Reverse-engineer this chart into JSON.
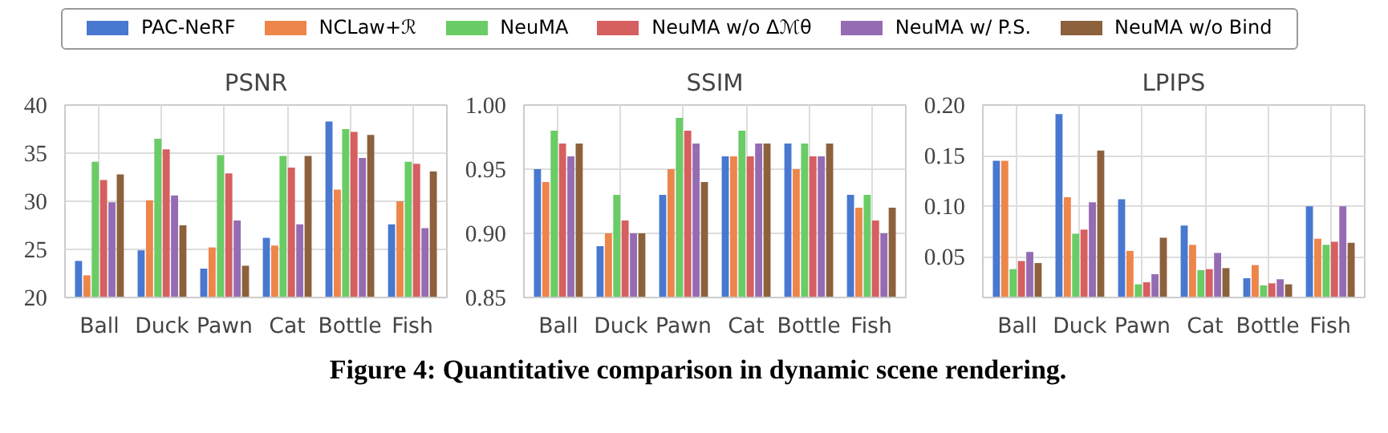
{
  "chart_data": [
    {
      "type": "bar",
      "title": "PSNR",
      "categories": [
        "Ball",
        "Duck",
        "Pawn",
        "Cat",
        "Bottle",
        "Fish"
      ],
      "ylim": [
        20,
        40
      ],
      "yticks": [
        20,
        25,
        30,
        35,
        40
      ],
      "grid": true,
      "legend": "top",
      "annotations": [
        "Figure 4: Quantitative comparison in dynamic scene rendering."
      ],
      "series": [
        {
          "name": "PAC-NeRF",
          "color": "#4878d0",
          "values": [
            23.8,
            24.9,
            23.0,
            26.2,
            38.3,
            27.6
          ]
        },
        {
          "name": "NCLaw+ℛ",
          "color": "#ee854a",
          "values": [
            22.3,
            30.1,
            25.2,
            25.4,
            31.2,
            30.0
          ]
        },
        {
          "name": "NeuMA",
          "color": "#6acc64",
          "values": [
            34.1,
            36.5,
            34.8,
            34.7,
            37.5,
            34.1
          ]
        },
        {
          "name": "NeuMA w/o Δℳθ",
          "color": "#d65f5f",
          "values": [
            32.2,
            35.4,
            32.9,
            33.5,
            37.2,
            33.9
          ]
        },
        {
          "name": "NeuMA w/ P.S.",
          "color": "#956cb4",
          "values": [
            29.9,
            30.6,
            28.0,
            27.6,
            34.5,
            27.2
          ]
        },
        {
          "name": "NeuMA w/o Bind",
          "color": "#8c613c",
          "values": [
            32.8,
            27.5,
            23.3,
            34.7,
            36.9,
            33.1
          ]
        }
      ]
    },
    {
      "type": "bar",
      "title": "SSIM",
      "categories": [
        "Ball",
        "Duck",
        "Pawn",
        "Cat",
        "Bottle",
        "Fish"
      ],
      "ylim": [
        0.85,
        1.0
      ],
      "yticks": [
        {
          "value": 0.85,
          "label": "0.85"
        },
        {
          "value": 0.9,
          "label": "0.90"
        },
        {
          "value": 0.95,
          "label": "0.95"
        },
        {
          "value": 1.0,
          "label": "1.00"
        }
      ],
      "grid": true,
      "series": [
        {
          "color": "#4878d0",
          "values": [
            0.95,
            0.89,
            0.93,
            0.96,
            0.97,
            0.93
          ]
        },
        {
          "color": "#ee854a",
          "values": [
            0.94,
            0.9,
            0.95,
            0.96,
            0.95,
            0.92
          ]
        },
        {
          "color": "#6acc64",
          "values": [
            0.98,
            0.93,
            0.99,
            0.98,
            0.97,
            0.93
          ]
        },
        {
          "color": "#d65f5f",
          "values": [
            0.97,
            0.91,
            0.98,
            0.96,
            0.96,
            0.91
          ]
        },
        {
          "color": "#956cb4",
          "values": [
            0.96,
            0.9,
            0.97,
            0.97,
            0.96,
            0.9
          ]
        },
        {
          "color": "#8c613c",
          "values": [
            0.97,
            0.9,
            0.94,
            0.97,
            0.97,
            0.92
          ]
        }
      ]
    },
    {
      "type": "bar",
      "title": "LPIPS",
      "categories": [
        "Ball",
        "Duck",
        "Pawn",
        "Cat",
        "Bottle",
        "Fish"
      ],
      "ylim": [
        0.01,
        0.2
      ],
      "yticks": [
        {
          "value": 0.05,
          "label": "0.05"
        },
        {
          "value": 0.1,
          "label": "0.10"
        },
        {
          "value": 0.15,
          "label": "0.15"
        },
        {
          "value": 0.2,
          "label": "0.20"
        }
      ],
      "grid": true,
      "series": [
        {
          "color": "#4878d0",
          "values": [
            0.145,
            0.191,
            0.107,
            0.081,
            0.029,
            0.1
          ]
        },
        {
          "color": "#ee854a",
          "values": [
            0.145,
            0.109,
            0.056,
            0.062,
            0.042,
            0.068
          ]
        },
        {
          "color": "#6acc64",
          "values": [
            0.038,
            0.073,
            0.023,
            0.037,
            0.022,
            0.062
          ]
        },
        {
          "color": "#d65f5f",
          "values": [
            0.046,
            0.077,
            0.025,
            0.038,
            0.024,
            0.065
          ]
        },
        {
          "color": "#956cb4",
          "values": [
            0.055,
            0.104,
            0.033,
            0.054,
            0.028,
            0.1
          ]
        },
        {
          "color": "#8c613c",
          "values": [
            0.044,
            0.155,
            0.069,
            0.039,
            0.023,
            0.064
          ]
        }
      ]
    }
  ]
}
